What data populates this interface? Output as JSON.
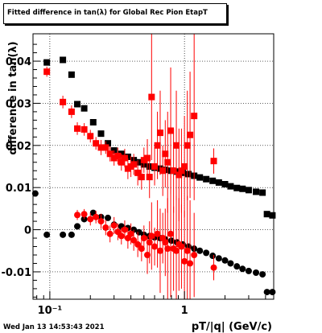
{
  "chart_data": {
    "type": "scatter",
    "title": "Fitted difference in tan(λ) for Global Rec Pion EtapT",
    "xlabel": "pT/|q| (GeV/c)",
    "ylabel": "difference in tan(λ)",
    "xscale": "log",
    "xlim": [
      0.075,
      4.6
    ],
    "ylim": [
      -0.0165,
      0.0465
    ],
    "y_ticks": [
      {
        "value": -0.01,
        "label": "-0.01"
      },
      {
        "value": 0,
        "label": "0"
      },
      {
        "value": 0.01,
        "label": "0.01"
      },
      {
        "value": 0.02,
        "label": "0.02"
      },
      {
        "value": 0.03,
        "label": "0.03"
      },
      {
        "value": 0.04,
        "label": "0.04"
      }
    ],
    "x_ticks": [
      {
        "value": 0.1,
        "label": "10⁻¹"
      },
      {
        "value": 1,
        "label": "1"
      }
    ],
    "grid": true,
    "series": [
      {
        "marker": "square",
        "color": "#000000",
        "points": [
          [
            0.095,
            0.0397
          ],
          [
            0.125,
            0.0403
          ],
          [
            0.145,
            0.0368
          ],
          [
            0.16,
            0.0298
          ],
          [
            0.18,
            0.0288
          ],
          [
            0.21,
            0.0255
          ],
          [
            0.24,
            0.0228
          ],
          [
            0.27,
            0.0205
          ],
          [
            0.3,
            0.0188
          ],
          [
            0.34,
            0.018
          ],
          [
            0.38,
            0.0173
          ],
          [
            0.42,
            0.0165
          ],
          [
            0.46,
            0.016
          ],
          [
            0.5,
            0.0155
          ],
          [
            0.55,
            0.015
          ],
          [
            0.6,
            0.0147
          ],
          [
            0.66,
            0.0145
          ],
          [
            0.72,
            0.0142
          ],
          [
            0.8,
            0.014
          ],
          [
            0.88,
            0.0138
          ],
          [
            0.97,
            0.0135
          ],
          [
            1.07,
            0.0132
          ],
          [
            1.18,
            0.0128
          ],
          [
            1.3,
            0.0124
          ],
          [
            1.45,
            0.012
          ],
          [
            1.62,
            0.0116
          ],
          [
            1.8,
            0.0112
          ],
          [
            2.0,
            0.0108
          ],
          [
            2.2,
            0.0103
          ],
          [
            2.45,
            0.0099
          ],
          [
            2.7,
            0.0097
          ],
          [
            3.0,
            0.0094
          ],
          [
            3.4,
            0.009
          ],
          [
            3.8,
            0.0088
          ],
          [
            4.1,
            0.0037
          ],
          [
            4.5,
            0.0034
          ]
        ]
      },
      {
        "marker": "circle",
        "color": "#000000",
        "points": [
          [
            0.078,
            0.0086
          ],
          [
            0.095,
            -0.0012
          ],
          [
            0.125,
            -0.0012
          ],
          [
            0.145,
            -0.0012
          ],
          [
            0.16,
            0.0008
          ],
          [
            0.18,
            0.0025
          ],
          [
            0.21,
            0.004
          ],
          [
            0.24,
            0.003
          ],
          [
            0.27,
            0.0028
          ],
          [
            0.3,
            0.0012
          ],
          [
            0.34,
            0.0008
          ],
          [
            0.38,
            0.0004
          ],
          [
            0.42,
            0.0
          ],
          [
            0.46,
            -0.0006
          ],
          [
            0.5,
            -0.0012
          ],
          [
            0.55,
            -0.0015
          ],
          [
            0.6,
            -0.0018
          ],
          [
            0.66,
            -0.002
          ],
          [
            0.72,
            -0.0023
          ],
          [
            0.8,
            -0.0026
          ],
          [
            0.88,
            -0.003
          ],
          [
            0.97,
            -0.0035
          ],
          [
            1.07,
            -0.004
          ],
          [
            1.18,
            -0.0045
          ],
          [
            1.3,
            -0.005
          ],
          [
            1.45,
            -0.0055
          ],
          [
            1.62,
            -0.0062
          ],
          [
            1.8,
            -0.0068
          ],
          [
            2.0,
            -0.0073
          ],
          [
            2.2,
            -0.008
          ],
          [
            2.45,
            -0.0087
          ],
          [
            2.7,
            -0.0093
          ],
          [
            3.0,
            -0.0098
          ],
          [
            3.4,
            -0.0102
          ],
          [
            3.8,
            -0.0106
          ],
          [
            4.1,
            -0.0148
          ],
          [
            4.5,
            -0.0148
          ]
        ]
      },
      {
        "marker": "square",
        "color": "#ff0000",
        "points": [
          [
            0.095,
            0.0375,
            0.0012
          ],
          [
            0.125,
            0.0303,
            0.0015
          ],
          [
            0.145,
            0.028,
            0.0015
          ],
          [
            0.16,
            0.024,
            0.0015
          ],
          [
            0.18,
            0.0238,
            0.0015
          ],
          [
            0.2,
            0.0222,
            0.0015
          ],
          [
            0.22,
            0.0205,
            0.0015
          ],
          [
            0.24,
            0.0195,
            0.0018
          ],
          [
            0.26,
            0.0195,
            0.0015
          ],
          [
            0.28,
            0.018,
            0.0018
          ],
          [
            0.3,
            0.017,
            0.0018
          ],
          [
            0.32,
            0.0175,
            0.002
          ],
          [
            0.34,
            0.016,
            0.002
          ],
          [
            0.36,
            0.017,
            0.0022
          ],
          [
            0.38,
            0.0145,
            0.0025
          ],
          [
            0.4,
            0.015,
            0.0025
          ],
          [
            0.42,
            0.0155,
            0.0025
          ],
          [
            0.45,
            0.0135,
            0.003
          ],
          [
            0.48,
            0.0125,
            0.003
          ],
          [
            0.5,
            0.0165,
            0.003
          ],
          [
            0.53,
            0.017,
            0.0045
          ],
          [
            0.55,
            0.0125,
            0.005
          ],
          [
            0.57,
            0.0315,
            0.015
          ],
          [
            0.6,
            0.015,
            0.0045
          ],
          [
            0.63,
            0.02,
            0.008
          ],
          [
            0.66,
            0.023,
            0.01
          ],
          [
            0.69,
            0.014,
            0.006
          ],
          [
            0.72,
            0.018,
            0.008
          ],
          [
            0.75,
            0.016,
            0.012
          ],
          [
            0.79,
            0.0235,
            0.015
          ],
          [
            0.83,
            0.014,
            0.01
          ],
          [
            0.87,
            0.02,
            0.013
          ],
          [
            0.91,
            0.013,
            0.011
          ],
          [
            0.95,
            0.014,
            0.01
          ],
          [
            1.0,
            0.015,
            0.012
          ],
          [
            1.05,
            0.02,
            0.013
          ],
          [
            1.1,
            0.0225,
            0.015
          ],
          [
            1.18,
            0.027,
            0.02
          ],
          [
            1.65,
            0.0163,
            0.003
          ]
        ]
      },
      {
        "marker": "circle",
        "color": "#ff0000",
        "points": [
          [
            0.16,
            0.0035,
            0.0012
          ],
          [
            0.18,
            0.0037,
            0.0012
          ],
          [
            0.2,
            0.0025,
            0.0015
          ],
          [
            0.22,
            0.003,
            0.0015
          ],
          [
            0.24,
            0.002,
            0.0018
          ],
          [
            0.26,
            0.0005,
            0.0018
          ],
          [
            0.28,
            -0.001,
            0.002
          ],
          [
            0.3,
            0.001,
            0.002
          ],
          [
            0.32,
            -0.0005,
            0.002
          ],
          [
            0.34,
            -0.0015,
            0.002
          ],
          [
            0.36,
            0.0,
            0.0022
          ],
          [
            0.38,
            -0.002,
            0.0025
          ],
          [
            0.4,
            -0.001,
            0.0025
          ],
          [
            0.42,
            -0.0025,
            0.0025
          ],
          [
            0.45,
            -0.0035,
            0.003
          ],
          [
            0.48,
            -0.0045,
            0.003
          ],
          [
            0.5,
            -0.002,
            0.003
          ],
          [
            0.53,
            -0.006,
            0.0045
          ],
          [
            0.55,
            -0.003,
            0.005
          ],
          [
            0.57,
            -0.0015,
            0.008
          ],
          [
            0.6,
            -0.004,
            0.0045
          ],
          [
            0.63,
            -0.001,
            0.008
          ],
          [
            0.66,
            -0.005,
            0.01
          ],
          [
            0.69,
            -0.002,
            0.006
          ],
          [
            0.72,
            -0.003,
            0.008
          ],
          [
            0.75,
            -0.0045,
            0.012
          ],
          [
            0.79,
            -0.001,
            0.015
          ],
          [
            0.83,
            -0.0045,
            0.01
          ],
          [
            0.87,
            -0.005,
            0.013
          ],
          [
            0.91,
            -0.0035,
            0.011
          ],
          [
            0.95,
            -0.004,
            0.01
          ],
          [
            1.0,
            -0.0075,
            0.012
          ],
          [
            1.05,
            -0.005,
            0.013
          ],
          [
            1.1,
            -0.008,
            0.015
          ],
          [
            1.18,
            -0.006,
            0.01
          ],
          [
            1.65,
            -0.009,
            0.003
          ]
        ]
      }
    ]
  },
  "date_stamp": "Wed Jan 13 14:53:43 2021"
}
